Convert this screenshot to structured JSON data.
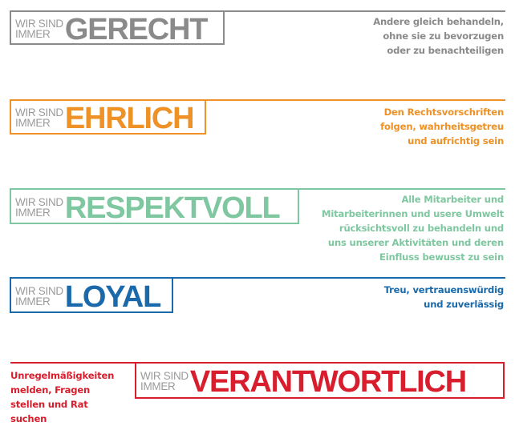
{
  "prefix": {
    "line1": "WIR SIND",
    "line2": "IMMER"
  },
  "values": [
    {
      "word": "GERECHT",
      "color": "#8a8a8a",
      "description": "Andere gleich behandeln,\nohne sie zu bevorzugen\noder zu benachteiligen"
    },
    {
      "word": "EHRLICH",
      "color": "#ee9126",
      "description": "Den Rechtsvorschriften\nfolgen, wahrheitsgetreu\nund aufrichtig sein"
    },
    {
      "word": "RESPEKTVOLL",
      "color": "#7fc7a0",
      "description": "Alle Mitarbeiter und\nMitarbeiterinnen und usere Umwelt\nrücksichtsvoll zu behandeln und\nuns unserer Aktivitäten und deren\nEinfluss bewusst zu sein"
    },
    {
      "word": "LOYAL",
      "color": "#1a6aab",
      "description": "Treu, vertrauenswürdig\nund zuverlässig"
    },
    {
      "word": "VERANTWORTLICH",
      "color": "#d81e2c",
      "description": "Unregelmäßigkeiten\nmelden, Fragen\nstellen und Rat\nsuchen"
    }
  ]
}
